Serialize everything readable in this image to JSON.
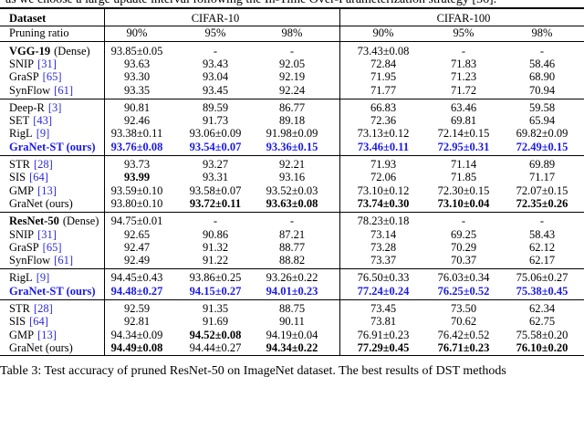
{
  "header": {
    "top_text": "as we choose a large update interval following the In-Time Over-Parameterization strategy [56].",
    "caption": "Table 3: Test accuracy of pruned ResNet-50 on ImageNet dataset. The best results of DST methods"
  },
  "table": {
    "dataset_label": "Dataset",
    "datasets": [
      "CIFAR-10",
      "CIFAR-100"
    ],
    "ratio_label": "Pruning ratio",
    "ratios": [
      "90%",
      "95%",
      "98%",
      "90%",
      "95%",
      "98%"
    ],
    "groups": [
      {
        "rows": [
          {
            "method": "VGG-19",
            "note": "(Dense)",
            "name_bold": true,
            "cells": [
              "93.85±0.05",
              "-",
              "-",
              "73.43±0.08",
              "-",
              "-"
            ]
          },
          {
            "method": "SNIP",
            "ref": "[31]",
            "cells": [
              "93.63",
              "93.43",
              "92.05",
              "72.84",
              "71.83",
              "58.46"
            ]
          },
          {
            "method": "GraSP",
            "ref": "[65]",
            "cells": [
              "93.30",
              "93.04",
              "92.19",
              "71.95",
              "71.23",
              "68.90"
            ]
          },
          {
            "method": "SynFlow",
            "ref": "[61]",
            "cells": [
              "93.35",
              "93.45",
              "92.24",
              "71.77",
              "71.72",
              "70.94"
            ]
          }
        ]
      },
      {
        "rows": [
          {
            "method": "Deep-R",
            "ref": "[3]",
            "cells": [
              "90.81",
              "89.59",
              "86.77",
              "66.83",
              "63.46",
              "59.58"
            ]
          },
          {
            "method": "SET",
            "ref": "[43]",
            "cells": [
              "92.46",
              "91.73",
              "89.18",
              "72.36",
              "69.81",
              "65.94"
            ]
          },
          {
            "method": "RigL",
            "ref": "[9]",
            "cells": [
              "93.38±0.11",
              "93.06±0.09",
              "91.98±0.09",
              "73.13±0.12",
              "72.14±0.15",
              "69.82±0.09"
            ]
          },
          {
            "method": "GraNet-ST (ours)",
            "color": "#1a1ae6",
            "bold": [
              0,
              1,
              2,
              3,
              4,
              5
            ],
            "cells": [
              "93.76±0.08",
              "93.54±0.07",
              "93.36±0.15",
              "73.46±0.11",
              "72.95±0.31",
              "72.49±0.15"
            ]
          }
        ]
      },
      {
        "rows": [
          {
            "method": "STR",
            "ref": "[28]",
            "cells": [
              "93.73",
              "93.27",
              "92.21",
              "71.93",
              "71.14",
              "69.89"
            ]
          },
          {
            "method": "SIS",
            "ref": "[64]",
            "bold": [
              0
            ],
            "cells": [
              "93.99",
              "93.31",
              "93.16",
              "72.06",
              "71.85",
              "71.17"
            ]
          },
          {
            "method": "GMP",
            "ref": "[13]",
            "cells": [
              "93.59±0.10",
              "93.58±0.07",
              "93.52±0.03",
              "73.10±0.12",
              "72.30±0.15",
              "72.07±0.15"
            ]
          },
          {
            "method": "GraNet (ours)",
            "bold": [
              1,
              2,
              3,
              4,
              5
            ],
            "cells": [
              "93.80±0.10",
              "93.72±0.11",
              "93.63±0.08",
              "73.74±0.30",
              "73.10±0.04",
              "72.35±0.26"
            ]
          }
        ]
      },
      {
        "thick": true,
        "rows": [
          {
            "method": "ResNet-50",
            "note": "(Dense)",
            "name_bold": true,
            "cells": [
              "94.75±0.01",
              "-",
              "-",
              "78.23±0.18",
              "-",
              "-"
            ]
          },
          {
            "method": "SNIP",
            "ref": "[31]",
            "cells": [
              "92.65",
              "90.86",
              "87.21",
              "73.14",
              "69.25",
              "58.43"
            ]
          },
          {
            "method": "GraSP",
            "ref": "[65]",
            "cells": [
              "92.47",
              "91.32",
              "88.77",
              "73.28",
              "70.29",
              "62.12"
            ]
          },
          {
            "method": "SynFlow",
            "ref": "[61]",
            "cells": [
              "92.49",
              "91.22",
              "88.82",
              "73.37",
              "70.37",
              "62.17"
            ]
          }
        ]
      },
      {
        "rows": [
          {
            "method": "RigL",
            "ref": "[9]",
            "cells": [
              "94.45±0.43",
              "93.86±0.25",
              "93.26±0.22",
              "76.50±0.33",
              "76.03±0.34",
              "75.06±0.27"
            ]
          },
          {
            "method": "GraNet-ST (ours)",
            "color": "#1a1ae6",
            "bold": [
              0,
              1,
              2,
              3,
              4,
              5
            ],
            "cells": [
              "94.48±0.27",
              "94.15±0.27",
              "94.01±0.23",
              "77.24±0.24",
              "76.25±0.52",
              "75.38±0.45"
            ]
          }
        ]
      },
      {
        "rows": [
          {
            "method": "STR",
            "ref": "[28]",
            "cells": [
              "92.59",
              "91.35",
              "88.75",
              "73.45",
              "73.50",
              "62.34"
            ]
          },
          {
            "method": "SIS",
            "ref": "[64]",
            "cells": [
              "92.81",
              "91.69",
              "90.11",
              "73.81",
              "70.62",
              "62.75"
            ]
          },
          {
            "method": "GMP",
            "ref": "[13]",
            "bold": [
              1
            ],
            "cells": [
              "94.34±0.09",
              "94.52±0.08",
              "94.19±0.04",
              "76.91±0.23",
              "76.42±0.52",
              "75.58±0.20"
            ]
          },
          {
            "method": "GraNet (ours)",
            "bold": [
              0,
              2,
              3,
              4,
              5
            ],
            "cells": [
              "94.49±0.08",
              "94.44±0.27",
              "94.34±0.22",
              "77.29±0.45",
              "76.71±0.23",
              "76.10±0.20"
            ]
          }
        ]
      }
    ]
  }
}
